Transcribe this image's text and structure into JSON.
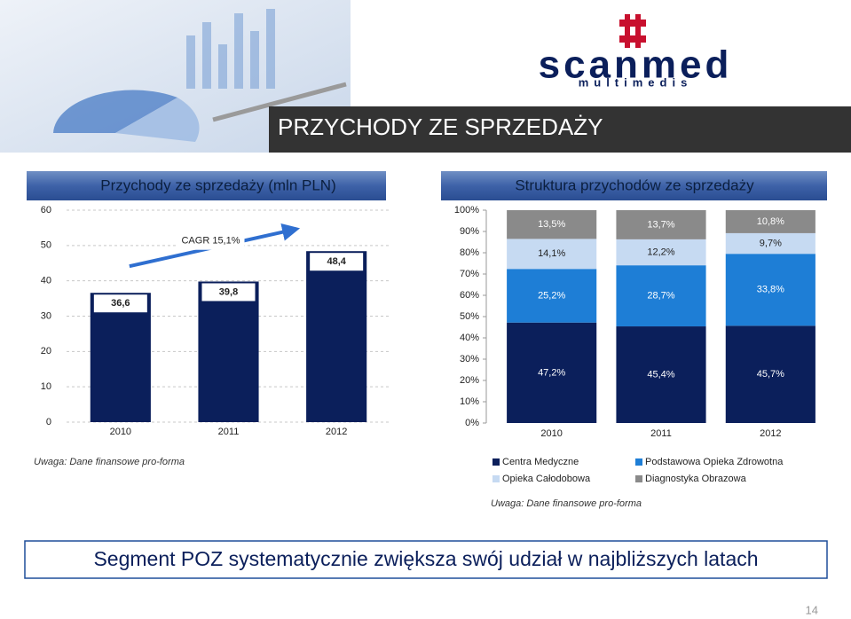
{
  "header": {
    "title": "PRZYCHODY ZE SPRZEDAŻY",
    "logo": "scanmed",
    "logo_sub": "multimedis"
  },
  "chart_data": [
    {
      "type": "bar",
      "title": "Przychody ze sprzedaży (mln PLN)",
      "categories": [
        "2010",
        "2011",
        "2012"
      ],
      "values": [
        36.6,
        39.8,
        48.4
      ],
      "value_labels": [
        "36,6",
        "39,8",
        "48,4"
      ],
      "color": "#0b1f5b",
      "ylim": [
        0,
        60
      ],
      "yticks": [
        0,
        10,
        20,
        30,
        40,
        50,
        60
      ],
      "grid": true,
      "annotation": "CAGR 15,1%"
    },
    {
      "type": "stacked_bar",
      "title": "Struktura przychodów ze sprzedaży",
      "categories": [
        "2010",
        "2011",
        "2012"
      ],
      "series": [
        {
          "name": "Centra Medyczne",
          "color": "#0b1f5b",
          "values": [
            47.2,
            45.4,
            45.7
          ],
          "value_labels": [
            "47,2%",
            "45,4%",
            "45,7%"
          ]
        },
        {
          "name": "Podstawowa Opieka Zdrowotna",
          "color": "#1e7ed6",
          "values": [
            25.2,
            28.7,
            33.8
          ],
          "value_labels": [
            "25,2%",
            "28,7%",
            "33,8%"
          ]
        },
        {
          "name": "Opieka Całodobowa",
          "color": "#c6daf2",
          "values": [
            14.1,
            12.2,
            9.7
          ],
          "value_labels": [
            "14,1%",
            "12,2%",
            "9,7%"
          ]
        },
        {
          "name": "Diagnostyka Obrazowa",
          "color": "#8a8a8a",
          "values": [
            13.5,
            13.7,
            10.8
          ],
          "value_labels": [
            "13,5%",
            "13,7%",
            "10,8%"
          ]
        }
      ],
      "ylim": [
        0,
        100
      ],
      "yticks": [
        {
          "value": 0,
          "label": "0%"
        },
        {
          "value": 10,
          "label": "10%"
        },
        {
          "value": 20,
          "label": "20%"
        },
        {
          "value": 30,
          "label": "30%"
        },
        {
          "value": 40,
          "label": "40%"
        },
        {
          "value": 50,
          "label": "50%"
        },
        {
          "value": 60,
          "label": "60%"
        },
        {
          "value": 70,
          "label": "70%"
        },
        {
          "value": 80,
          "label": "80%"
        },
        {
          "value": 90,
          "label": "90%"
        },
        {
          "value": 100,
          "label": "100%"
        }
      ],
      "legend": "bottom"
    }
  ],
  "notes": [
    "Uwaga: Dane finansowe pro-forma",
    "Uwaga: Dane finansowe pro-forma"
  ],
  "banner": "Segment POZ systematycznie zwiększa swój udział w najbliższych latach",
  "page_number": "14"
}
